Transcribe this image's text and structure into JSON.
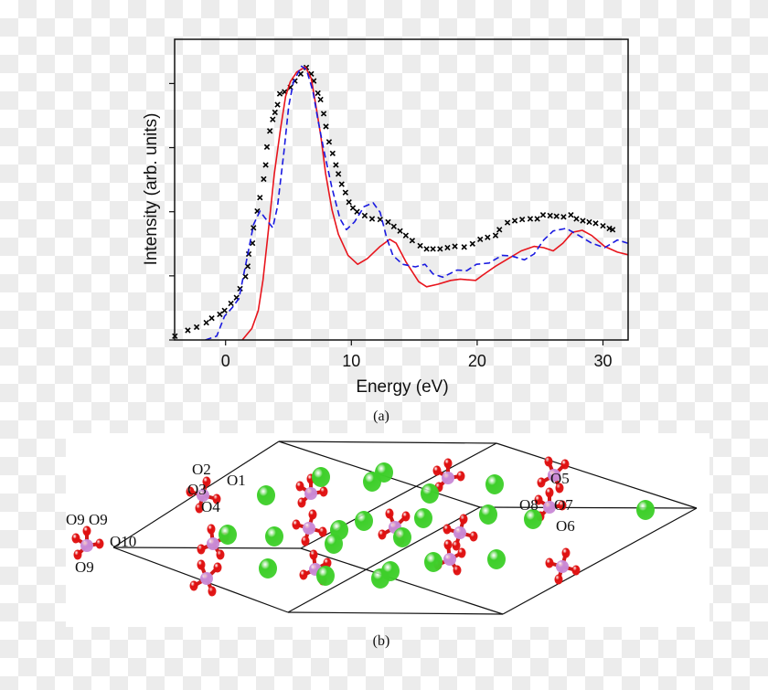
{
  "chart_data": {
    "type": "line",
    "title": "",
    "xlabel": "Energy (eV)",
    "ylabel": "Intensity (arb. units)",
    "xlim": [
      -4.05,
      32.0
    ],
    "ylim": [
      0,
      4.69
    ],
    "xticks": [
      0,
      10,
      20,
      30
    ],
    "xtick_labels": [
      "0",
      "10",
      "20",
      "30"
    ],
    "yticks": [
      0,
      1,
      2,
      3,
      4
    ],
    "ytick_labels": [
      "",
      "",
      "",
      "",
      ""
    ],
    "grid": false,
    "legend": "none",
    "series": [
      {
        "style": "markers-x",
        "color": "#000000",
        "x": [
          -4.03,
          -3.0,
          -2.3,
          -1.53,
          -1.1,
          -0.46,
          -0.08,
          0.43,
          0.87,
          1.15,
          1.58,
          1.76,
          1.84,
          2.14,
          2.22,
          2.52,
          2.73,
          3.03,
          3.19,
          3.29,
          3.52,
          3.75,
          3.93,
          4.13,
          4.31,
          4.69,
          5.15,
          5.51,
          5.97,
          6.42,
          6.81,
          7.01,
          7.34,
          7.55,
          7.8,
          7.98,
          8.23,
          8.51,
          8.77,
          8.97,
          9.23,
          9.53,
          9.81,
          10.12,
          10.45,
          11.06,
          11.65,
          12.29,
          12.92,
          13.38,
          13.87,
          14.33,
          14.84,
          15.47,
          15.98,
          16.49,
          17.05,
          17.64,
          18.23,
          18.97,
          19.63,
          20.24,
          20.83,
          21.46,
          21.77,
          22.41,
          22.99,
          23.58,
          24.22,
          24.78,
          25.24,
          25.8,
          26.31,
          26.87,
          27.45,
          27.89,
          28.4,
          28.91,
          29.42,
          30.0,
          30.51,
          30.77
        ],
        "y": [
          0.06,
          0.15,
          0.2,
          0.27,
          0.34,
          0.4,
          0.46,
          0.57,
          0.66,
          0.8,
          0.99,
          1.15,
          1.34,
          1.51,
          1.75,
          2.01,
          2.22,
          2.51,
          2.73,
          3.01,
          3.26,
          3.44,
          3.55,
          3.67,
          3.84,
          3.87,
          3.94,
          4.04,
          4.15,
          4.25,
          4.15,
          4.04,
          3.85,
          3.75,
          3.53,
          3.33,
          3.09,
          2.91,
          2.73,
          2.59,
          2.43,
          2.3,
          2.15,
          2.06,
          2.0,
          1.94,
          1.89,
          1.88,
          1.84,
          1.77,
          1.7,
          1.63,
          1.55,
          1.47,
          1.42,
          1.42,
          1.42,
          1.44,
          1.46,
          1.45,
          1.5,
          1.57,
          1.6,
          1.63,
          1.72,
          1.83,
          1.86,
          1.88,
          1.89,
          1.89,
          1.95,
          1.94,
          1.93,
          1.92,
          1.95,
          1.89,
          1.86,
          1.84,
          1.82,
          1.78,
          1.74,
          1.72
        ]
      },
      {
        "style": "solid",
        "color": "#e8141c",
        "x": [
          1.33,
          2.09,
          2.6,
          2.98,
          3.37,
          3.88,
          4.39,
          4.77,
          5.15,
          5.66,
          6.35,
          6.81,
          7.19,
          7.57,
          7.95,
          8.46,
          8.97,
          9.74,
          10.5,
          11.27,
          12.29,
          13.05,
          13.56,
          14.33,
          15.35,
          15.98,
          16.88,
          17.9,
          18.66,
          19.17,
          19.88,
          20.44,
          21.46,
          22.48,
          23.5,
          24.52,
          25.29,
          26.05,
          26.82,
          27.58,
          28.35,
          29.11,
          30.13,
          31.15,
          31.97
        ],
        "y": [
          0,
          0.18,
          0.46,
          0.94,
          1.65,
          2.6,
          3.32,
          3.8,
          4.03,
          4.18,
          4.26,
          4.08,
          3.65,
          3.18,
          2.6,
          2.03,
          1.65,
          1.32,
          1.18,
          1.27,
          1.46,
          1.57,
          1.51,
          1.22,
          0.91,
          0.83,
          0.87,
          0.93,
          0.95,
          0.94,
          0.93,
          1.01,
          1.15,
          1.27,
          1.39,
          1.46,
          1.44,
          1.39,
          1.51,
          1.68,
          1.71,
          1.63,
          1.46,
          1.37,
          1.33
        ]
      },
      {
        "style": "dashed",
        "color": "#1a1ae0",
        "x": [
          -1.61,
          -0.71,
          -0.08,
          0.56,
          1.07,
          1.45,
          1.84,
          2.22,
          2.73,
          3.11,
          3.75,
          4.13,
          4.64,
          5.02,
          5.4,
          6.04,
          6.42,
          6.93,
          7.32,
          7.83,
          8.46,
          9.1,
          9.61,
          10.25,
          11.01,
          11.73,
          12.29,
          12.8,
          13.3,
          14.07,
          15.09,
          15.86,
          16.49,
          17.26,
          18.41,
          19.17,
          19.94,
          20.95,
          21.97,
          22.74,
          23.76,
          24.52,
          25.29,
          26.05,
          27.07,
          28.09,
          29.11,
          30.13,
          31.15,
          31.97
        ],
        "y": [
          0,
          0.06,
          0.37,
          0.51,
          0.65,
          1.03,
          1.41,
          1.8,
          2.01,
          1.91,
          1.75,
          2.08,
          2.94,
          3.65,
          4.03,
          4.27,
          4.22,
          3.89,
          3.46,
          2.94,
          2.37,
          1.89,
          1.72,
          1.84,
          2.08,
          2.14,
          1.99,
          1.6,
          1.32,
          1.18,
          1.14,
          1.18,
          1.03,
          0.98,
          1.09,
          1.08,
          1.18,
          1.2,
          1.32,
          1.31,
          1.25,
          1.34,
          1.56,
          1.7,
          1.74,
          1.63,
          1.51,
          1.44,
          1.56,
          1.51
        ]
      }
    ]
  },
  "captions": {
    "a": "(a)",
    "b": "(b)"
  },
  "diagram": {
    "colors": {
      "cell_edge": "#111111",
      "ca_atom": "#3ecf2a",
      "p_atom": "#c98ad6",
      "o_atom": "#e01010",
      "bond": "#d01818"
    },
    "labels": [
      "O2",
      "O1",
      "O3",
      "O4",
      "O9",
      "O9",
      "O10",
      "O9",
      "O5",
      "O8",
      "O7",
      "O6"
    ]
  }
}
